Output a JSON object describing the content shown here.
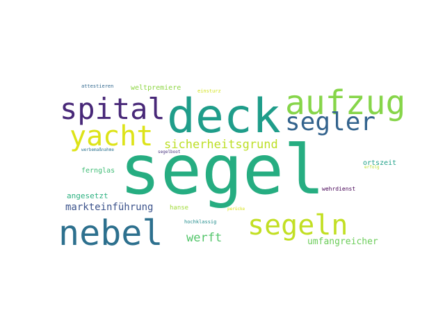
{
  "words": [
    {
      "text": "segel",
      "color": "#26ad81"
    },
    {
      "text": "deck",
      "color": "#1f9d8a"
    },
    {
      "text": "aufzug",
      "color": "#86d549"
    },
    {
      "text": "spital",
      "color": "#482878"
    },
    {
      "text": "segler",
      "color": "#33638d"
    },
    {
      "text": "yacht",
      "color": "#dde318"
    },
    {
      "text": "sicherheitsgrund",
      "color": "#bddf26"
    },
    {
      "text": "nebel",
      "color": "#2d708e"
    },
    {
      "text": "segeln",
      "color": "#c2df23"
    },
    {
      "text": "werft",
      "color": "#52c569"
    },
    {
      "text": "umfangreicher",
      "color": "#6ccd5a"
    },
    {
      "text": "markteinführung",
      "color": "#3b528b"
    },
    {
      "text": "fernglas",
      "color": "#3dbc74"
    },
    {
      "text": "angesetzt",
      "color": "#2ab07f"
    },
    {
      "text": "ortszeit",
      "color": "#1fa088"
    },
    {
      "text": "wehrdienst",
      "color": "#440154"
    },
    {
      "text": "hanse",
      "color": "#a0da39"
    },
    {
      "text": "hochklassig",
      "color": "#228d8d"
    },
    {
      "text": "weltpremiere",
      "color": "#8ed645"
    },
    {
      "text": "einsturz",
      "color": "#d2e21b"
    },
    {
      "text": "attestieren",
      "color": "#31688e"
    },
    {
      "text": "werbemaßnahme",
      "color": "#2c728e"
    },
    {
      "text": "segelboot",
      "color": "#46327e"
    },
    {
      "text": "perücke",
      "color": "#d8e219"
    },
    {
      "text": "erfolg",
      "color": "#b5de2b"
    }
  ]
}
